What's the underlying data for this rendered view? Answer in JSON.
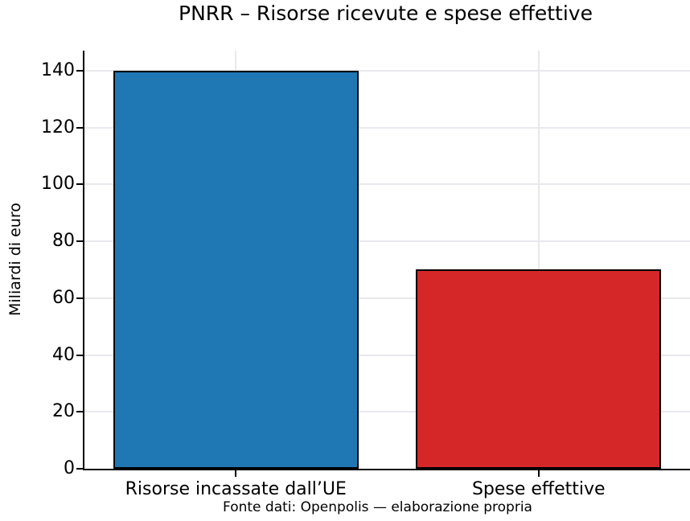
{
  "chart_data": {
    "type": "bar",
    "title": "PNRR – Risorse ricevute e spese effettive",
    "categories": [
      "Risorse incassate dall’UE",
      "Spese effettive"
    ],
    "values": [
      140,
      70
    ],
    "bar_colors": [
      "#1f77b4",
      "#d62728"
    ],
    "bar_edge_color": "#000000",
    "xlabel": "",
    "ylabel": "Miliardi di euro",
    "yticks": [
      0,
      20,
      40,
      60,
      80,
      100,
      120,
      140
    ],
    "ylim": [
      0,
      147
    ],
    "grid": true,
    "grid_color": "#e8e8ee",
    "legend": "none",
    "caption": "Fonte dati: Openpolis — elaborazione propria"
  }
}
